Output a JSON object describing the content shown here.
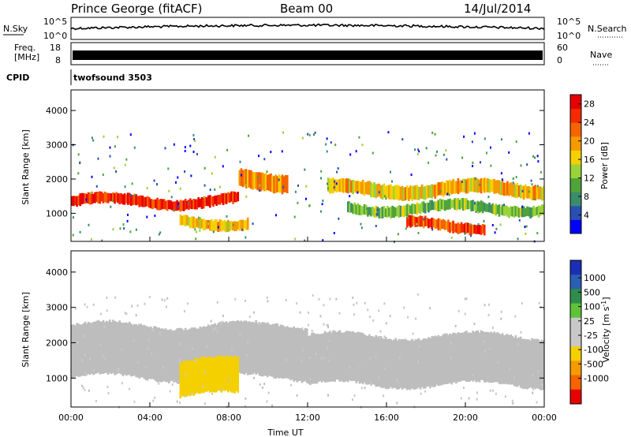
{
  "header": {
    "station": "Prince George (fitACF)",
    "beam": "Beam 00",
    "date": "14/Jul/2014"
  },
  "strips": {
    "nsky": {
      "label": "N.Sky",
      "ticks": [
        "10^5",
        "10^0"
      ],
      "right_label": "N.Search",
      "right_ticks": [
        "10^5",
        "10^0"
      ]
    },
    "freq": {
      "label_line1": "Freq.",
      "label_line2": "[MHz]",
      "ticks": [
        "18",
        "8"
      ],
      "right_label": "Nave",
      "right_ticks": [
        "60",
        "0"
      ]
    },
    "cpid": {
      "label": "CPID",
      "program": "twofsound 3503"
    }
  },
  "colors": {
    "power_scale": [
      "#0000ff",
      "#2a4fb3",
      "#3a8c6a",
      "#4fa33a",
      "#9ad23a",
      "#f5d000",
      "#f59a00",
      "#f56400",
      "#f52a00",
      "#e60000"
    ],
    "velocity_scale": [
      "#1a2fb3",
      "#2a5fb3",
      "#2f8c4a",
      "#5fc33a",
      "#c8c8c8",
      "#c8c8c8",
      "#f5d000",
      "#f59a00",
      "#f56400",
      "#e60000"
    ],
    "ground_scatter": "#bdbdbd"
  },
  "chart_data": [
    {
      "type": "heatmap",
      "name": "power",
      "xlabel": "",
      "ylabel": "Slant Range [km]",
      "x_range": [
        "00:00",
        "24:00"
      ],
      "ylim": [
        180,
        4600
      ],
      "yticks": [
        "1000",
        "2000",
        "3000",
        "4000"
      ],
      "colorbar_label": "Power [dB]",
      "colorbar_ticks": [
        "4",
        "8",
        "12",
        "16",
        "20",
        "24",
        "28"
      ],
      "colorbar_range": [
        0,
        30
      ],
      "bands": [
        {
          "t_start": 0.0,
          "t_end": 8.5,
          "r_start": 1200,
          "r_end": 1500,
          "level": 26
        },
        {
          "t_start": 8.5,
          "t_end": 11.0,
          "r_start": 1700,
          "r_end": 2200,
          "level": 20
        },
        {
          "t_start": 13.0,
          "t_end": 24.0,
          "r_start": 1500,
          "r_end": 1900,
          "level": 18
        },
        {
          "t_start": 14.0,
          "t_end": 24.0,
          "r_start": 1000,
          "r_end": 1300,
          "level": 12
        },
        {
          "t_start": 5.5,
          "t_end": 9.0,
          "r_start": 600,
          "r_end": 900,
          "level": 18
        },
        {
          "t_start": 17.0,
          "t_end": 21.0,
          "r_start": 500,
          "r_end": 800,
          "level": 24
        }
      ]
    },
    {
      "type": "heatmap",
      "name": "velocity",
      "xlabel": "Time UT",
      "ylabel": "Slant Range [km]",
      "x_range": [
        "00:00",
        "24:00"
      ],
      "ylim": [
        180,
        4600
      ],
      "yticks": [
        "1000",
        "2000",
        "3000",
        "4000"
      ],
      "xticks": [
        "00:00",
        "04:00",
        "08:00",
        "12:00",
        "16:00",
        "20:00",
        "00:00"
      ],
      "colorbar_label": "Velocity [m s^-1]",
      "colorbar_ticks": [
        "1000",
        "500",
        "100",
        "25",
        "-25",
        "-100",
        "-500",
        "-1000"
      ],
      "colorbar_range": [
        -1000,
        1000
      ],
      "bands": [
        {
          "t_start": 0.0,
          "t_end": 12.0,
          "r_start": 1000,
          "r_end": 2500,
          "level": 0
        },
        {
          "t_start": 5.5,
          "t_end": 8.5,
          "r_start": 500,
          "r_end": 1500,
          "level": -300
        },
        {
          "t_start": 12.0,
          "t_end": 24.0,
          "r_start": 800,
          "r_end": 2200,
          "level": 0
        }
      ]
    }
  ]
}
